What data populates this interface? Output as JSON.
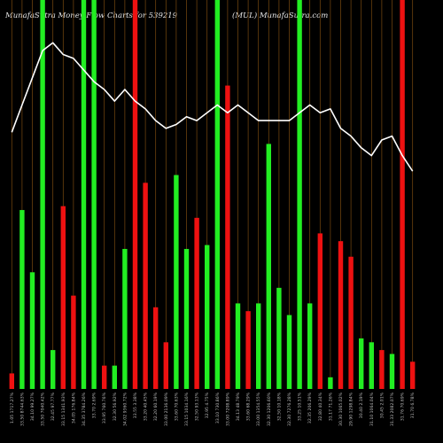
{
  "header": {
    "left": "MunafaSutra  Money Flow  Charts for 539219",
    "right": "(MUL) MunafaSutra.com"
  },
  "colors": {
    "background": "#000000",
    "up": "#22ee22",
    "down": "#ee1111",
    "grid": "#7a4a10",
    "line": "#ffffff",
    "text": "#e6e6e6"
  },
  "chart_data": {
    "type": "bar",
    "title": "",
    "xlabel": "",
    "ylabel": "",
    "grid": true,
    "ylim": [
      0,
      100
    ],
    "categories": [
      "23-07-2024",
      "22-07-2024",
      "19-07-2024",
      "18-07-2024",
      "16-07-2024",
      "15-07-2024",
      "12-07-2024",
      "11-07-2024",
      "10-07-2024",
      "09-07-2024",
      "08-07-2024",
      "05-07-2024",
      "04-07-2024",
      "03-07-2024",
      "02-07-2024",
      "01-07-2024",
      "28-06-2024",
      "27-06-2024",
      "26-06-2024",
      "25-06-2024",
      "24-06-2024",
      "21-06-2024",
      "20-06-2024",
      "19-06-2024",
      "18-06-2024",
      "14-06-2024",
      "13-06-2024",
      "12-06-2024",
      "11-06-2024",
      "10-06-2024",
      "07-06-2024",
      "06-06-2024",
      "05-06-2024",
      "04-06-2024",
      "03-06-2024",
      "31-05-2024",
      "30-05-2024",
      "29-05-2024",
      "28-05-2024",
      "27-05-2024"
    ],
    "tick_labels": [
      "1.05 1717.27%",
      "33.50 8744.63%",
      "34.10 99.27%",
      "33.50 7040.42%",
      "32.45 97.77%",
      "33.15 1341.93%",
      "34.05 176.84%",
      "34.35 3784.26%",
      "33.70 2.69%",
      "33.95 760.76%",
      "32.30 56.92%",
      "34.02 9360.72%",
      "33.55 3.38%",
      "33.20 40.45%",
      "32.20 60.19%",
      "33.00 2136.09%",
      "33.60 70.63%",
      "33.15 1034.16%",
      "32.50 93.13%",
      "32.95 4.75%",
      "33.10 730.86%",
      "33.00 7208.89%",
      "34.13 48.79%",
      "33.60 68.29%",
      "33.00 1354.55%",
      "32.30 1206.60%",
      "32.50 10.18%",
      "32.30 7276.28%",
      "33.25 10.51%",
      "32.35 206.29%",
      "32.80 40.34%",
      "31.17 71.26%",
      "30.30 1065.02%",
      "29.90 1298.84%",
      "30.40 2.19%",
      "31.10 1064.04%",
      "30.45 2.01%",
      "31.33 2082.07%",
      "31.76 70.69%",
      "31.70 6.78%"
    ],
    "series": [
      {
        "values": [
          4,
          46,
          30,
          100,
          10,
          47,
          24,
          100,
          100,
          6,
          6,
          36,
          100,
          53,
          21,
          12,
          55,
          36,
          44,
          37,
          100,
          78,
          22,
          20,
          22,
          63,
          26,
          19,
          100,
          22,
          40,
          3,
          38,
          34,
          13,
          12,
          10,
          9,
          100,
          7
        ],
        "colors": [
          "down",
          "up",
          "up",
          "up",
          "up",
          "down",
          "down",
          "up",
          "up",
          "down",
          "up",
          "up",
          "down",
          "down",
          "down",
          "down",
          "up",
          "up",
          "down",
          "up",
          "up",
          "down",
          "up",
          "down",
          "up",
          "up",
          "up",
          "up",
          "up",
          "up",
          "down",
          "up",
          "down",
          "down",
          "up",
          "up",
          "down",
          "up",
          "down",
          "down"
        ]
      },
      {
        "values": [
          66,
          73,
          80,
          87,
          89,
          86,
          85,
          82,
          79,
          77,
          74,
          77,
          74,
          72,
          69,
          67,
          68,
          70,
          69,
          71,
          73,
          71,
          73,
          71,
          69,
          69,
          69,
          69,
          71,
          73,
          71,
          72,
          67,
          65,
          62,
          60,
          64,
          65,
          60,
          56
        ]
      }
    ]
  }
}
